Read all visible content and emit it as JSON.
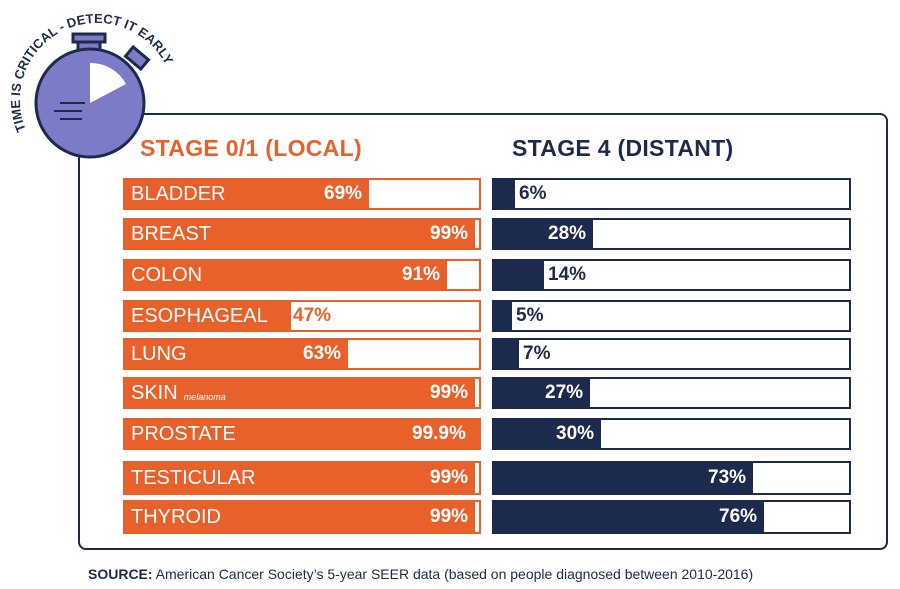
{
  "badge": {
    "arc_text": "TIME IS CRITICAL - DETECT IT EARLY"
  },
  "chart_data": {
    "type": "bar",
    "orientation": "horizontal",
    "ylim": [
      0,
      100
    ],
    "categories": [
      {
        "label": "BLADDER",
        "sub": ""
      },
      {
        "label": "BREAST",
        "sub": ""
      },
      {
        "label": "COLON",
        "sub": ""
      },
      {
        "label": "ESOPHAGEAL",
        "sub": ""
      },
      {
        "label": "LUNG",
        "sub": ""
      },
      {
        "label": "SKIN",
        "sub": "melanoma"
      },
      {
        "label": "PROSTATE",
        "sub": ""
      },
      {
        "label": "TESTICULAR",
        "sub": ""
      },
      {
        "label": "THYROID",
        "sub": ""
      }
    ],
    "series": [
      {
        "name": "STAGE 0/1 (LOCAL)",
        "color": "#e8602a",
        "values": [
          69,
          99,
          91,
          47,
          63,
          99,
          99.9,
          99,
          99
        ],
        "labels": [
          "69%",
          "99%",
          "91%",
          "47%",
          "63%",
          "99%",
          "99.9%",
          "99%",
          "99%"
        ]
      },
      {
        "name": "STAGE 4 (DISTANT)",
        "color": "#1c2b4d",
        "values": [
          6,
          28,
          14,
          5,
          7,
          27,
          30,
          73,
          76
        ],
        "labels": [
          "6%",
          "28%",
          "14%",
          "5%",
          "7%",
          "27%",
          "30%",
          "73%",
          "76%"
        ]
      }
    ]
  },
  "source": {
    "label": "SOURCE:",
    "text": " American Cancer Society’s 5-year SEER data (based on people diagnosed between 2010-2016)"
  },
  "colors": {
    "accent": "#e8602a",
    "navy": "#1c2b4d",
    "watch": "#7b7bc8"
  }
}
